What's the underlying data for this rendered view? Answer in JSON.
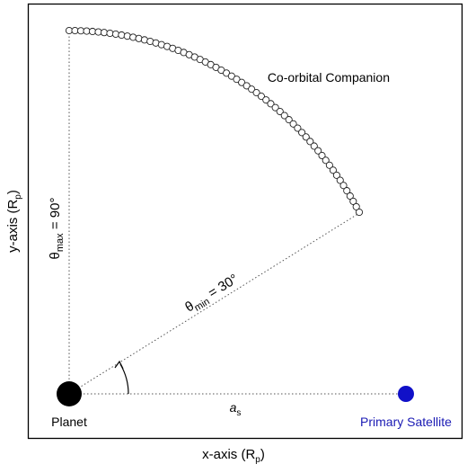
{
  "figure": {
    "x_axis_label": "x-axis (R",
    "x_axis_sub": "p",
    "x_axis_close": ")",
    "y_axis_label": "y-axis (R",
    "y_axis_sub": "p",
    "y_axis_close": ")",
    "companion_label": "Co-orbital Companion",
    "planet_label": "Planet",
    "satellite_label": "Primary Satellite",
    "distance_symbol": "a",
    "distance_sub": "s",
    "theta_symbol": "θ",
    "theta_max_sub": "max",
    "theta_max_value": " = 90°",
    "theta_min_sub": "min",
    "theta_min_value": " = 30°"
  },
  "geometry_values": {
    "theta_min_deg": 30,
    "theta_max_deg": 90,
    "companion_count": 61
  },
  "colors": {
    "frame": "#000000",
    "planet": "#000000",
    "satellite": "#1010c8",
    "satellite_label": "#1a1ab4",
    "guide_lines": "#555555",
    "companion_fill": "#ffffff",
    "companion_stroke": "#222222"
  }
}
